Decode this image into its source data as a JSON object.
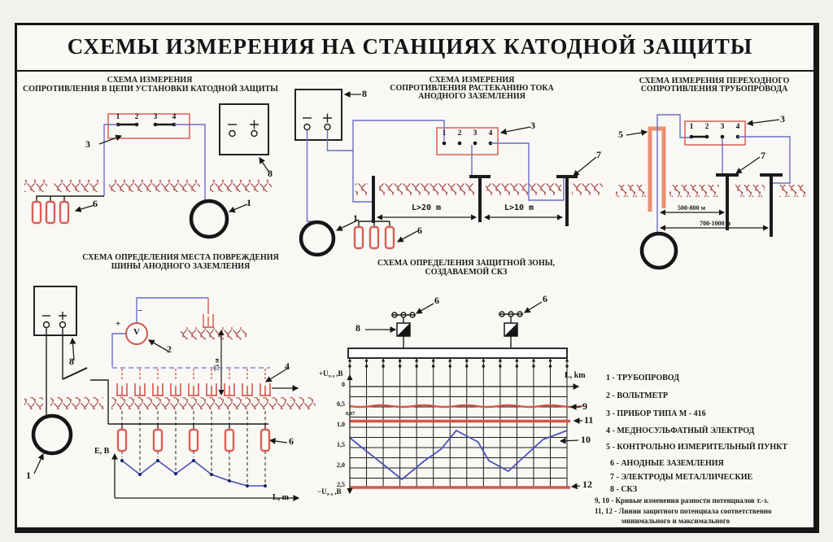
{
  "title": "СХЕМЫ ИЗМЕРЕНИЯ НА СТАНЦИЯХ КАТОДНОЙ ЗАЩИТЫ",
  "refs": {
    "r1": "1",
    "r2": "2",
    "r3": "3",
    "r4": "4",
    "r5": "5",
    "r6": "6",
    "r7": "7",
    "r8": "8",
    "r9": "9",
    "r10": "10",
    "r11": "11",
    "r12": "12"
  },
  "signs": {
    "minus": "−",
    "plus": "+",
    "volt": "V"
  },
  "colors": {
    "wire_blue": "#6a6ec6",
    "diagram_red": "#d95f55",
    "soil_red": "#a23c36",
    "curve_blue": "#4a52b8",
    "frame_black": "#171717"
  },
  "schemes": {
    "s1": {
      "t": [
        "СХЕМА ИЗМЕРЕНИЯ",
        "СОПРОТИВЛЕНИЯ В ЦЕПИ УСТАНОВКИ КАТОДНОЙ ЗАЩИТЫ"
      ]
    },
    "s2": {
      "t": [
        "СХЕМА  ИЗМЕРЕНИЯ",
        "СОПРОТИВЛЕНИЯ РАСТЕКАНИЮ ТОКА",
        "АНОДНОГО ЗАЗЕМЛЕНИЯ"
      ],
      "d1": "L>20 m",
      "d2": "L>10 m"
    },
    "s3": {
      "t": [
        "СХЕМА  ИЗМЕРЕНИЯ ПЕРЕХОДНОГО",
        "СОПРОТИВЛЕНИЯ ТРУБОПРОВОДА"
      ],
      "d1": "500-800 м",
      "d2": "700-1000 м"
    },
    "s4": {
      "t": [
        "СХЕМА  ОПРЕДЕЛЕНИЯ МЕСТА ПОВРЕЖДЕНИЯ",
        "ШИНЫ АНОДНОГО ЗАЗЕМЛЕНИЯ"
      ],
      "dim": "75 м",
      "ylabel": "E, B",
      "xlabel": "L, m"
    },
    "s5": {
      "t": [
        "СХЕМА  ОПРЕДЕЛЕНИЯ ЗАЩИТНОЙ ЗОНЫ,",
        "СОЗДАВАЕМОЙ СКЗ"
      ],
      "xlabel": "L, km",
      "y_plus": "+U",
      "y_minus": "−U",
      "y_sub": "т-з",
      "y_unit": " ,В",
      "threshold": "0,87",
      "ticks": [
        "0",
        "0,5",
        "1,0",
        "1,5",
        "2,0",
        "2,5"
      ]
    }
  },
  "legend": {
    "items": [
      "1 - ТРУБОПРОВОД",
      "2 - ВОЛЬТМЕТР",
      "3 - ПРИБОР ТИПА М - 416",
      "4 - МЕДНОСУЛЬФАТНЫЙ ЭЛЕКТРОД",
      "5 - КОНТРОЛЬНО ИЗМЕРИТЕЛЬНЫЙ ПУНКТ",
      "6 - АНОДНЫЕ ЗАЗЕМЛЕНИЯ",
      "7 - ЭЛЕКТРОДЫ МЕТАЛЛИЧЕСКИЕ",
      "8 - СКЗ",
      "9, 10 - Кривые изменения разности потенциалов  т.-з.",
      "11, 12 - Линии защитного потенциала соответственно",
      "минимального и максимального"
    ]
  },
  "chart_data": [
    {
      "type": "line",
      "title": "СХЕМА ОПРЕДЕЛЕНИЯ ЗАЩИТНОЙ ЗОНЫ, СОЗДАВАЕМОЙ СКЗ",
      "xlabel": "L, km",
      "ylabel": "Uт-з, В",
      "xlim": [
        0,
        10
      ],
      "ylim": [
        0,
        2.5
      ],
      "y_axis_inverted": true,
      "grid": true,
      "series": [
        {
          "name": "9",
          "description": "кривая изменения разности потенциалов т.-з. (минимальная)",
          "color": "#d05848",
          "style": "horizontal-wavy",
          "value": 0.5
        },
        {
          "name": "11",
          "description": "линия защитного потенциала минимального",
          "color": "#d05848",
          "style": "horizontal",
          "value": 0.87,
          "label": "0,87"
        },
        {
          "name": "10",
          "description": "кривая изменения разности потенциалов т.-з. (максимальная)",
          "color": "#4a52b8",
          "style": "polyline",
          "x": [
            0,
            2.4,
            3.4,
            4.2,
            4.9,
            5.9,
            6.4,
            7.3,
            8.9,
            10
          ],
          "y": [
            1.28,
            2.3,
            1.86,
            1.56,
            1.1,
            1.38,
            1.84,
            2.1,
            1.32,
            1.1
          ]
        },
        {
          "name": "12",
          "description": "линия защитного потенциала максимального",
          "color": "#d05848",
          "style": "horizontal",
          "value": 2.5
        }
      ]
    },
    {
      "type": "line",
      "xlabel": "L, m",
      "ylabel": "E, B",
      "series": [
        {
          "name": "E",
          "color": "#4a52b8",
          "style": "polyline-dots",
          "x_index": [
            0,
            1,
            2,
            3,
            4,
            5,
            6,
            7,
            8
          ],
          "y_rel": [
            1,
            0.45,
            1,
            0.48,
            1,
            0.45,
            0.2,
            0,
            0
          ]
        }
      ]
    }
  ]
}
